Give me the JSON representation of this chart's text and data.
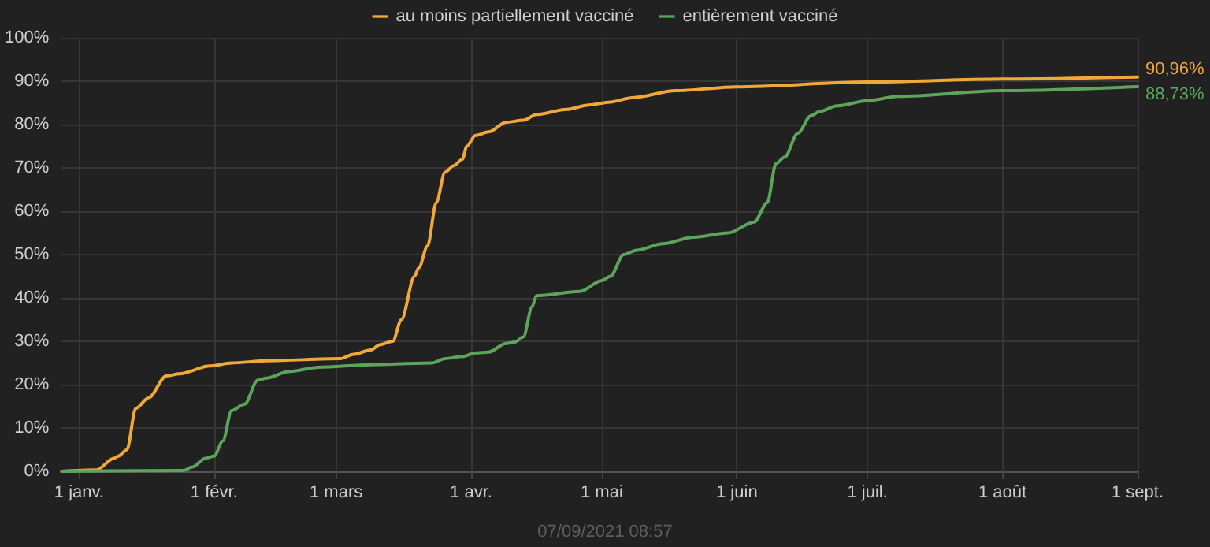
{
  "chart_data": {
    "type": "line",
    "xlim": [
      "2020-12-28",
      "2021-09-01"
    ],
    "xticks": [
      {
        "value": "2021-01-01",
        "label": "1 janv."
      },
      {
        "value": "2021-02-01",
        "label": "1 févr."
      },
      {
        "value": "2021-03-01",
        "label": "1 mars"
      },
      {
        "value": "2021-04-01",
        "label": "1 avr."
      },
      {
        "value": "2021-05-01",
        "label": "1 mai"
      },
      {
        "value": "2021-06-01",
        "label": "1 juin"
      },
      {
        "value": "2021-07-01",
        "label": "1 juil."
      },
      {
        "value": "2021-08-01",
        "label": "1 août"
      },
      {
        "value": "2021-09-01",
        "label": "1 sept."
      }
    ],
    "ylim": [
      0,
      100
    ],
    "yticks": [
      {
        "value": 0,
        "label": "0%"
      },
      {
        "value": 10,
        "label": "10%"
      },
      {
        "value": 20,
        "label": "20%"
      },
      {
        "value": 30,
        "label": "30%"
      },
      {
        "value": 40,
        "label": "40%"
      },
      {
        "value": 50,
        "label": "50%"
      },
      {
        "value": 60,
        "label": "60%"
      },
      {
        "value": 70,
        "label": "70%"
      },
      {
        "value": 80,
        "label": "80%"
      },
      {
        "value": 90,
        "label": "90%"
      },
      {
        "value": 100,
        "label": "100%"
      }
    ],
    "grid": true,
    "legend": "top",
    "marker": "none",
    "line_style": "solid",
    "annotations": [
      "07/09/2021 08:57"
    ],
    "series": [
      {
        "name": "au moins partiellement vacciné",
        "color": "#f0a839",
        "x": [
          "2020-12-28",
          "2021-01-05",
          "2021-01-09",
          "2021-01-10",
          "2021-01-12",
          "2021-01-14",
          "2021-01-17",
          "2021-01-21",
          "2021-01-24",
          "2021-01-31",
          "2021-02-05",
          "2021-02-13",
          "2021-03-02",
          "2021-03-05",
          "2021-03-09",
          "2021-03-11",
          "2021-03-14",
          "2021-03-16",
          "2021-03-19",
          "2021-03-20",
          "2021-03-22",
          "2021-03-24",
          "2021-03-26",
          "2021-03-28",
          "2021-03-30",
          "2021-03-31",
          "2021-04-02",
          "2021-04-05",
          "2021-04-09",
          "2021-04-13",
          "2021-04-16",
          "2021-04-23",
          "2021-04-28",
          "2021-05-03",
          "2021-05-08",
          "2021-05-18",
          "2021-06-01",
          "2021-07-01",
          "2021-08-01",
          "2021-09-01"
        ],
        "values": [
          0,
          0.3,
          3,
          3.5,
          5,
          14.5,
          17,
          22,
          22.5,
          24.3,
          25,
          25.5,
          26,
          27,
          28,
          29.2,
          30,
          35,
          45,
          47,
          52,
          62,
          69,
          70.5,
          72,
          75,
          77.5,
          78.3,
          80.5,
          81,
          82.3,
          83.5,
          84.5,
          85.2,
          86.2,
          87.8,
          88.7,
          89.8,
          90.5,
          90.96
        ],
        "value_labels": [
          null,
          null,
          null,
          null,
          null,
          null,
          null,
          null,
          null,
          null,
          null,
          null,
          null,
          null,
          null,
          null,
          null,
          null,
          null,
          null,
          null,
          null,
          null,
          null,
          null,
          null,
          null,
          null,
          null,
          null,
          null,
          null,
          null,
          null,
          null,
          null,
          null,
          null,
          null,
          "90,96%"
        ]
      },
      {
        "name": "entièrement vacciné",
        "color": "#5ba55b",
        "x": [
          "2020-12-28",
          "2021-01-25",
          "2021-01-27",
          "2021-01-30",
          "2021-02-01",
          "2021-02-03",
          "2021-02-05",
          "2021-02-08",
          "2021-02-11",
          "2021-02-13",
          "2021-02-18",
          "2021-02-25",
          "2021-03-09",
          "2021-03-23",
          "2021-03-26",
          "2021-03-30",
          "2021-04-02",
          "2021-04-05",
          "2021-04-09",
          "2021-04-11",
          "2021-04-13",
          "2021-04-15",
          "2021-04-16",
          "2021-04-26",
          "2021-05-01",
          "2021-05-03",
          "2021-05-06",
          "2021-05-09",
          "2021-05-15",
          "2021-05-22",
          "2021-05-30",
          "2021-06-05",
          "2021-06-08",
          "2021-06-10",
          "2021-06-12",
          "2021-06-15",
          "2021-06-18",
          "2021-06-20",
          "2021-06-24",
          "2021-07-01",
          "2021-07-08",
          "2021-08-01",
          "2021-09-01"
        ],
        "values": [
          0,
          0.2,
          1,
          3,
          3.5,
          7,
          14,
          15.5,
          21,
          21.5,
          23,
          24,
          24.6,
          25,
          26,
          26.5,
          27.3,
          27.5,
          29.5,
          29.8,
          31,
          38,
          40.5,
          41.5,
          44,
          45,
          50,
          51,
          52.5,
          54,
          55,
          57.5,
          62,
          71,
          72.5,
          78,
          82,
          83,
          84.3,
          85.5,
          86.5,
          87.8,
          88.73
        ],
        "value_labels": [
          null,
          null,
          null,
          null,
          null,
          null,
          null,
          null,
          null,
          null,
          null,
          null,
          null,
          null,
          null,
          null,
          null,
          null,
          null,
          null,
          null,
          null,
          null,
          null,
          null,
          null,
          null,
          null,
          null,
          null,
          null,
          null,
          null,
          null,
          null,
          null,
          null,
          null,
          null,
          null,
          null,
          null,
          "88,73%"
        ]
      }
    ]
  }
}
